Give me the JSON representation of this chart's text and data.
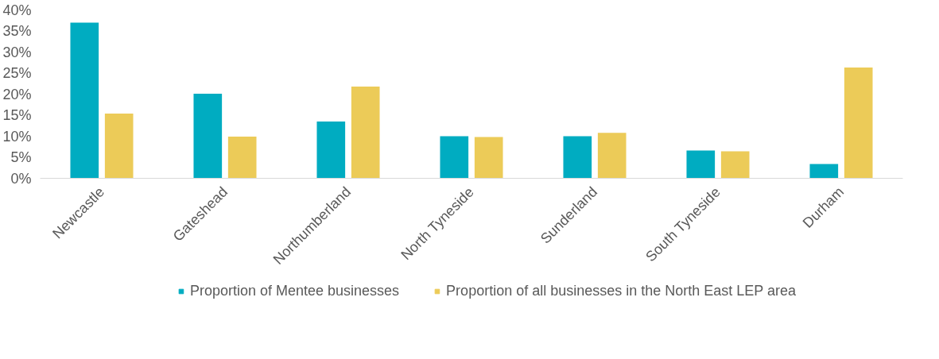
{
  "chart_data": {
    "type": "bar",
    "categories": [
      "Newcastle",
      "Gateshead",
      "Northumberland",
      "North Tyneside",
      "Sunderland",
      "South Tyneside",
      "Durham"
    ],
    "series": [
      {
        "name": "Proportion of Mentee businesses",
        "color": "#00acc1",
        "values": [
          37,
          20.1,
          13.5,
          10,
          10,
          6.6,
          3.4
        ]
      },
      {
        "name": "Proportion of all businesses in the North East LEP area",
        "color": "#eccb58",
        "values": [
          15.4,
          9.9,
          21.8,
          9.8,
          10.8,
          6.4,
          26.3
        ]
      }
    ],
    "ylim": [
      0,
      40
    ],
    "yticks": [
      {
        "value": 0,
        "label": "0%"
      },
      {
        "value": 5,
        "label": "5%"
      },
      {
        "value": 10,
        "label": "10%"
      },
      {
        "value": 15,
        "label": "15%"
      },
      {
        "value": 20,
        "label": "20%"
      },
      {
        "value": 25,
        "label": "25%"
      },
      {
        "value": 30,
        "label": "30%"
      },
      {
        "value": 35,
        "label": "35%"
      },
      {
        "value": 40,
        "label": "40%"
      }
    ],
    "grid": false,
    "legend": "bottom"
  }
}
